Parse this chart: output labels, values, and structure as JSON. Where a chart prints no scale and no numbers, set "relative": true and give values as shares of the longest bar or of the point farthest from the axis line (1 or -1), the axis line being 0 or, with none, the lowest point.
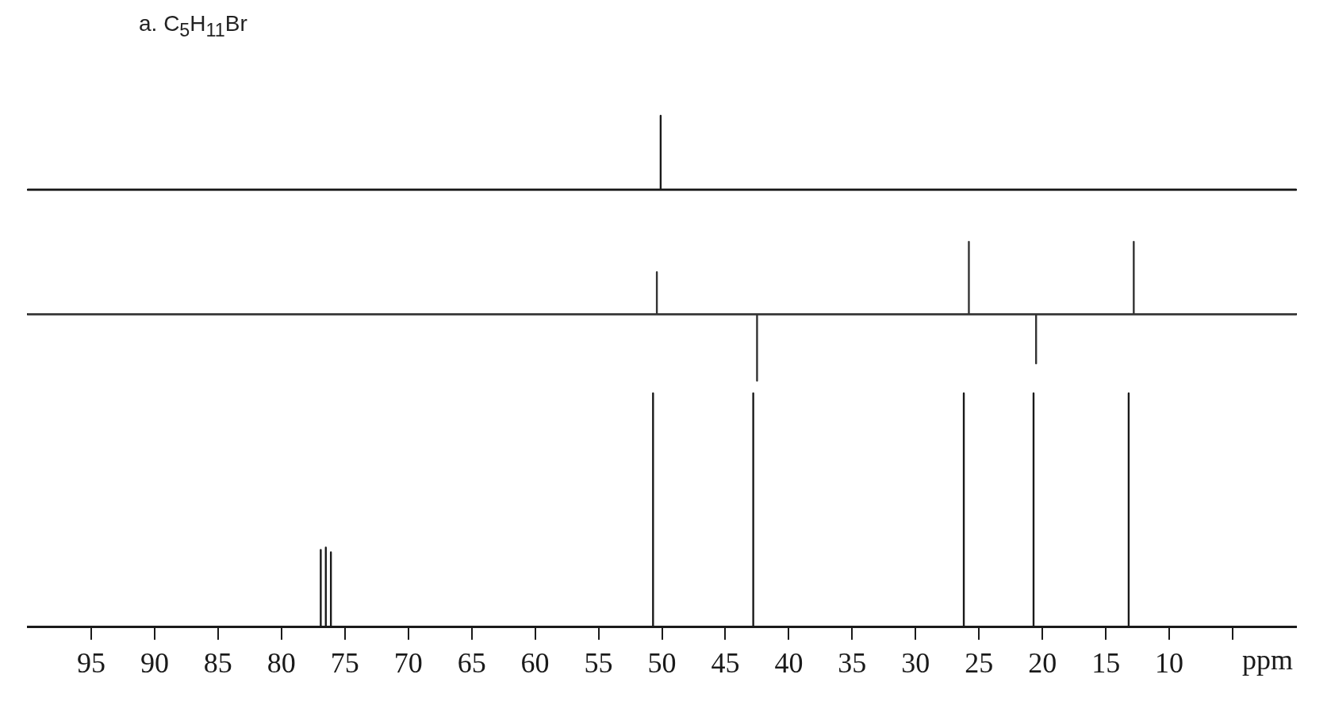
{
  "chart_data": [
    {
      "type": "line",
      "title": "a.   C$_{5}$H$_{11}$Br",
      "relative": true,
      "xlim": [
        100,
        0
      ],
      "tick_labels": false,
      "grid": false,
      "legend": false,
      "marker": "none",
      "line_style": "solid",
      "series": [
        {
          "color": "#1a1a1a",
          "x": [
            100,
            50.1,
            50.1,
            50.1,
            0
          ],
          "values": [
            0,
            0,
            1,
            0,
            0
          ]
        }
      ]
    },
    {
      "type": "line",
      "relative": true,
      "xlim": [
        100,
        0
      ],
      "tick_labels": false,
      "grid": false,
      "legend": false,
      "marker": "none",
      "line_style": "solid",
      "series": [
        {
          "color": "#333333",
          "x": [
            100,
            50.4,
            50.4,
            50.4,
            42.5,
            42.5,
            42.5,
            25.8,
            25.8,
            25.8,
            20.5,
            20.5,
            20.5,
            12.8,
            12.8,
            12.8,
            0
          ],
          "values": [
            0,
            0,
            0.58,
            0,
            0,
            -0.92,
            0,
            0,
            1,
            0,
            0,
            -0.68,
            0,
            0,
            1,
            0,
            0
          ]
        }
      ]
    },
    {
      "type": "line",
      "relative": true,
      "xlim": [
        100,
        0
      ],
      "xticks": [
        95,
        90,
        85,
        80,
        75,
        70,
        65,
        60,
        55,
        50,
        45,
        40,
        35,
        30,
        25,
        20,
        15,
        10,
        {
          "value": 5,
          "label": null
        }
      ],
      "xlabel": "ppm",
      "tick_labels": "x",
      "grid": false,
      "legend": false,
      "marker": "none",
      "line_style": "solid",
      "series": [
        {
          "color": "#1a1a1a",
          "x": [
            100,
            76.9,
            76.9,
            76.9,
            76.5,
            76.5,
            76.5,
            76.1,
            76.1,
            76.1,
            50.7,
            50.7,
            50.7,
            42.8,
            42.8,
            42.8,
            26.2,
            26.2,
            26.2,
            20.7,
            20.7,
            20.7,
            13.2,
            13.2,
            13.2,
            0
          ],
          "values": [
            0,
            0,
            0.33,
            0,
            0,
            0.34,
            0,
            0,
            0.32,
            0,
            0,
            1,
            0,
            0,
            1,
            0,
            0,
            1,
            0,
            0,
            1,
            0,
            0,
            1,
            0,
            0
          ]
        }
      ]
    }
  ]
}
